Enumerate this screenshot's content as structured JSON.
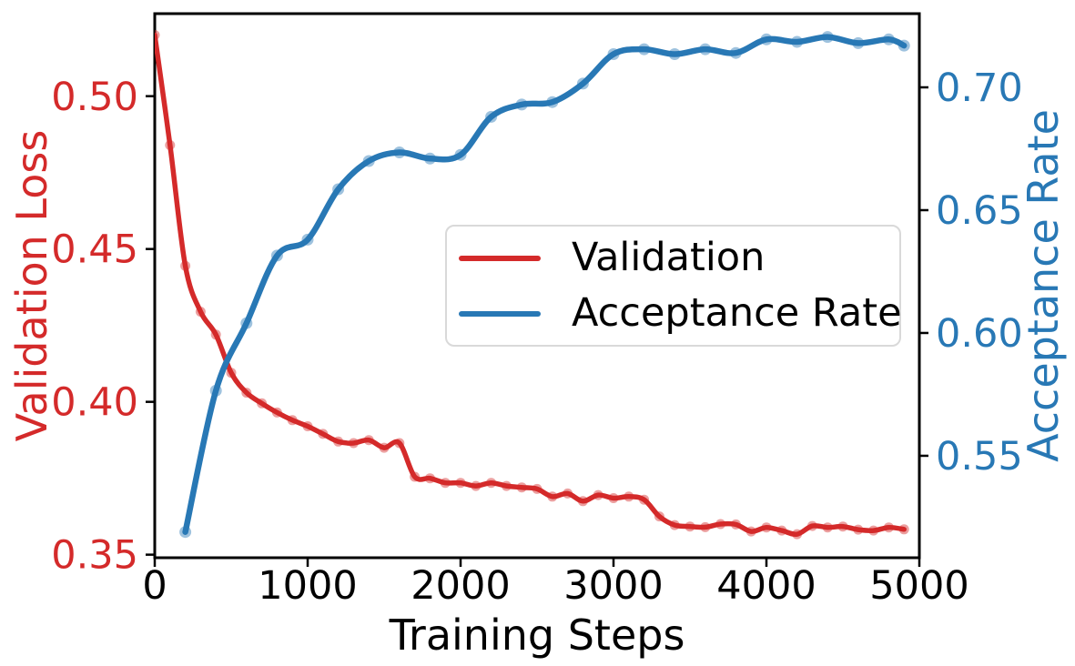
{
  "chart_data": {
    "type": "line",
    "title": "",
    "xlabel": "Training Steps",
    "xlim": [
      0,
      5000
    ],
    "x_ticks": [
      0,
      1000,
      2000,
      3000,
      4000,
      5000
    ],
    "x_tick_labels": [
      "0",
      "1000",
      "2000",
      "3000",
      "4000",
      "5000"
    ],
    "grid": false,
    "spine_color": "#000000",
    "x_text_color": "#000000",
    "left_axis": {
      "label": "Validation Loss",
      "color": "#d42a2a",
      "ylim": [
        0.349,
        0.527
      ],
      "ticks": [
        0.35,
        0.4,
        0.45,
        0.5
      ],
      "tick_labels": [
        "0.35",
        "0.40",
        "0.45",
        "0.50"
      ]
    },
    "right_axis": {
      "label": "Acceptance Rate",
      "color": "#2878b5",
      "ylim": [
        0.5085,
        0.73
      ],
      "ticks": [
        0.55,
        0.6,
        0.65,
        0.7
      ],
      "tick_labels": [
        "0.55",
        "0.60",
        "0.65",
        "0.70"
      ]
    },
    "legend": {
      "position": "center",
      "entries": [
        {
          "label": "Validation",
          "color": "#d42a2a"
        },
        {
          "label": "Acceptance Rate",
          "color": "#2878b5"
        }
      ]
    },
    "series": [
      {
        "name": "Validation",
        "axis": "left",
        "color": "#d42a2a",
        "line_width": 5.5,
        "marker_radius": 5.5,
        "marker_opacity": 0.45,
        "x": [
          0,
          100,
          200,
          300,
          400,
          500,
          600,
          700,
          800,
          900,
          1000,
          1100,
          1200,
          1300,
          1400,
          1500,
          1600,
          1700,
          1800,
          1900,
          2000,
          2100,
          2200,
          2300,
          2400,
          2500,
          2600,
          2700,
          2800,
          2900,
          3000,
          3100,
          3200,
          3300,
          3400,
          3500,
          3600,
          3700,
          3800,
          3900,
          4000,
          4100,
          4200,
          4300,
          4400,
          4500,
          4600,
          4700,
          4800,
          4900
        ],
        "y": [
          0.52,
          0.484,
          0.4445,
          0.4295,
          0.422,
          0.4095,
          0.403,
          0.3995,
          0.3965,
          0.394,
          0.392,
          0.3895,
          0.387,
          0.3865,
          0.3875,
          0.385,
          0.3865,
          0.3755,
          0.375,
          0.3735,
          0.3735,
          0.3725,
          0.3735,
          0.3725,
          0.372,
          0.3715,
          0.369,
          0.37,
          0.3675,
          0.3695,
          0.3685,
          0.369,
          0.368,
          0.3625,
          0.3597,
          0.3592,
          0.359,
          0.36,
          0.3599,
          0.3576,
          0.3589,
          0.3579,
          0.3567,
          0.3594,
          0.3589,
          0.3592,
          0.3582,
          0.3579,
          0.3589,
          0.3583
        ]
      },
      {
        "name": "Acceptance Rate",
        "axis": "right",
        "color": "#2878b5",
        "line_width": 6.5,
        "marker_radius": 6.5,
        "marker_opacity": 0.45,
        "x": [
          200,
          400,
          600,
          800,
          1000,
          1200,
          1400,
          1600,
          1800,
          2000,
          2200,
          2400,
          2600,
          2800,
          3000,
          3200,
          3400,
          3600,
          3800,
          4000,
          4200,
          4400,
          4600,
          4800,
          4900
        ],
        "y": [
          0.519,
          0.5765,
          0.604,
          0.6315,
          0.638,
          0.6585,
          0.67,
          0.6735,
          0.671,
          0.6725,
          0.688,
          0.693,
          0.694,
          0.7015,
          0.7135,
          0.7155,
          0.7135,
          0.7155,
          0.714,
          0.7195,
          0.7185,
          0.7205,
          0.718,
          0.7195,
          0.717
        ]
      }
    ]
  }
}
